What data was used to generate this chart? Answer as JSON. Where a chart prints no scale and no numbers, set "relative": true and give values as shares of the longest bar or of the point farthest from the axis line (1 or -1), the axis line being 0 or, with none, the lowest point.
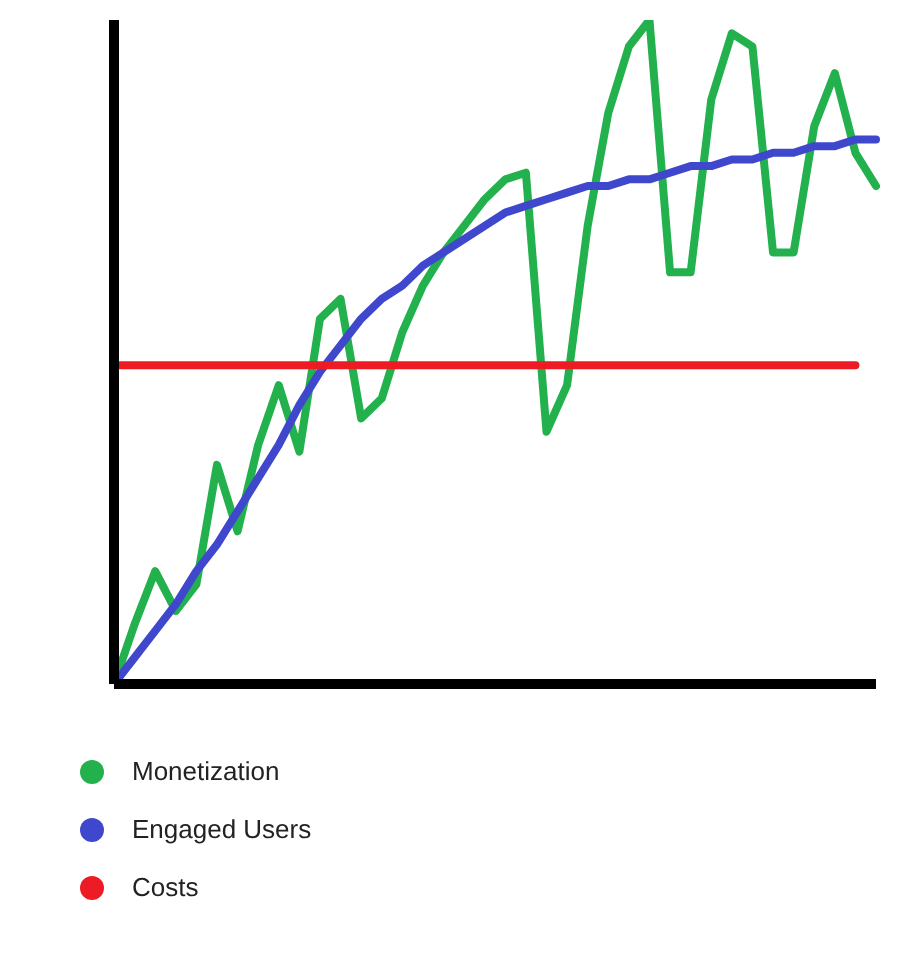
{
  "chart_data": {
    "type": "line",
    "relative": true,
    "legend": "bottom left",
    "categories": [
      null,
      null,
      null,
      null,
      null,
      null,
      null,
      null,
      null,
      null,
      null,
      null,
      null,
      null,
      null,
      null,
      null,
      null,
      null,
      null,
      null,
      null,
      null,
      null,
      null,
      null,
      null,
      null,
      null,
      null,
      null,
      null,
      null,
      null,
      null,
      null,
      null,
      null
    ],
    "series": [
      {
        "name": "Monetization",
        "color": "#22b14c",
        "values": [
          0,
          0.09,
          0.17,
          0.11,
          0.15,
          0.33,
          0.23,
          0.36,
          0.45,
          0.35,
          0.55,
          0.58,
          0.4,
          0.43,
          0.53,
          0.6,
          0.65,
          0.69,
          0.73,
          0.76,
          0.77,
          0.38,
          0.45,
          0.69,
          0.86,
          0.96,
          1,
          0.62,
          0.62,
          0.88,
          0.98,
          0.96,
          0.65,
          0.65,
          0.84,
          0.92,
          0.8,
          0.75
        ]
      },
      {
        "name": "Engaged Users",
        "color": "#3f48cc",
        "values": [
          0,
          0.04,
          0.08,
          0.12,
          0.17,
          0.21,
          0.26,
          0.31,
          0.36,
          0.42,
          0.47,
          0.51,
          0.55,
          0.58,
          0.6,
          0.63,
          0.65,
          0.67,
          0.69,
          0.71,
          0.72,
          0.73,
          0.74,
          0.75,
          0.75,
          0.76,
          0.76,
          0.77,
          0.78,
          0.78,
          0.79,
          0.79,
          0.8,
          0.8,
          0.81,
          0.81,
          0.82,
          0.82
        ]
      },
      {
        "name": "Costs",
        "color": "#ed1c24",
        "values": [
          0.48,
          0.48,
          0.48,
          0.48,
          0.48,
          0.48,
          0.48,
          0.48,
          0.48,
          0.48,
          0.48,
          0.48,
          0.48,
          0.48,
          0.48,
          0.48,
          0.48,
          0.48,
          0.48,
          0.48,
          0.48,
          0.48,
          0.48,
          0.48,
          0.48,
          0.48,
          0.48,
          0.48,
          0.48,
          0.48,
          0.48,
          0.48,
          0.48,
          0.48,
          0.48,
          0.48,
          0.48,
          null
        ]
      }
    ]
  }
}
